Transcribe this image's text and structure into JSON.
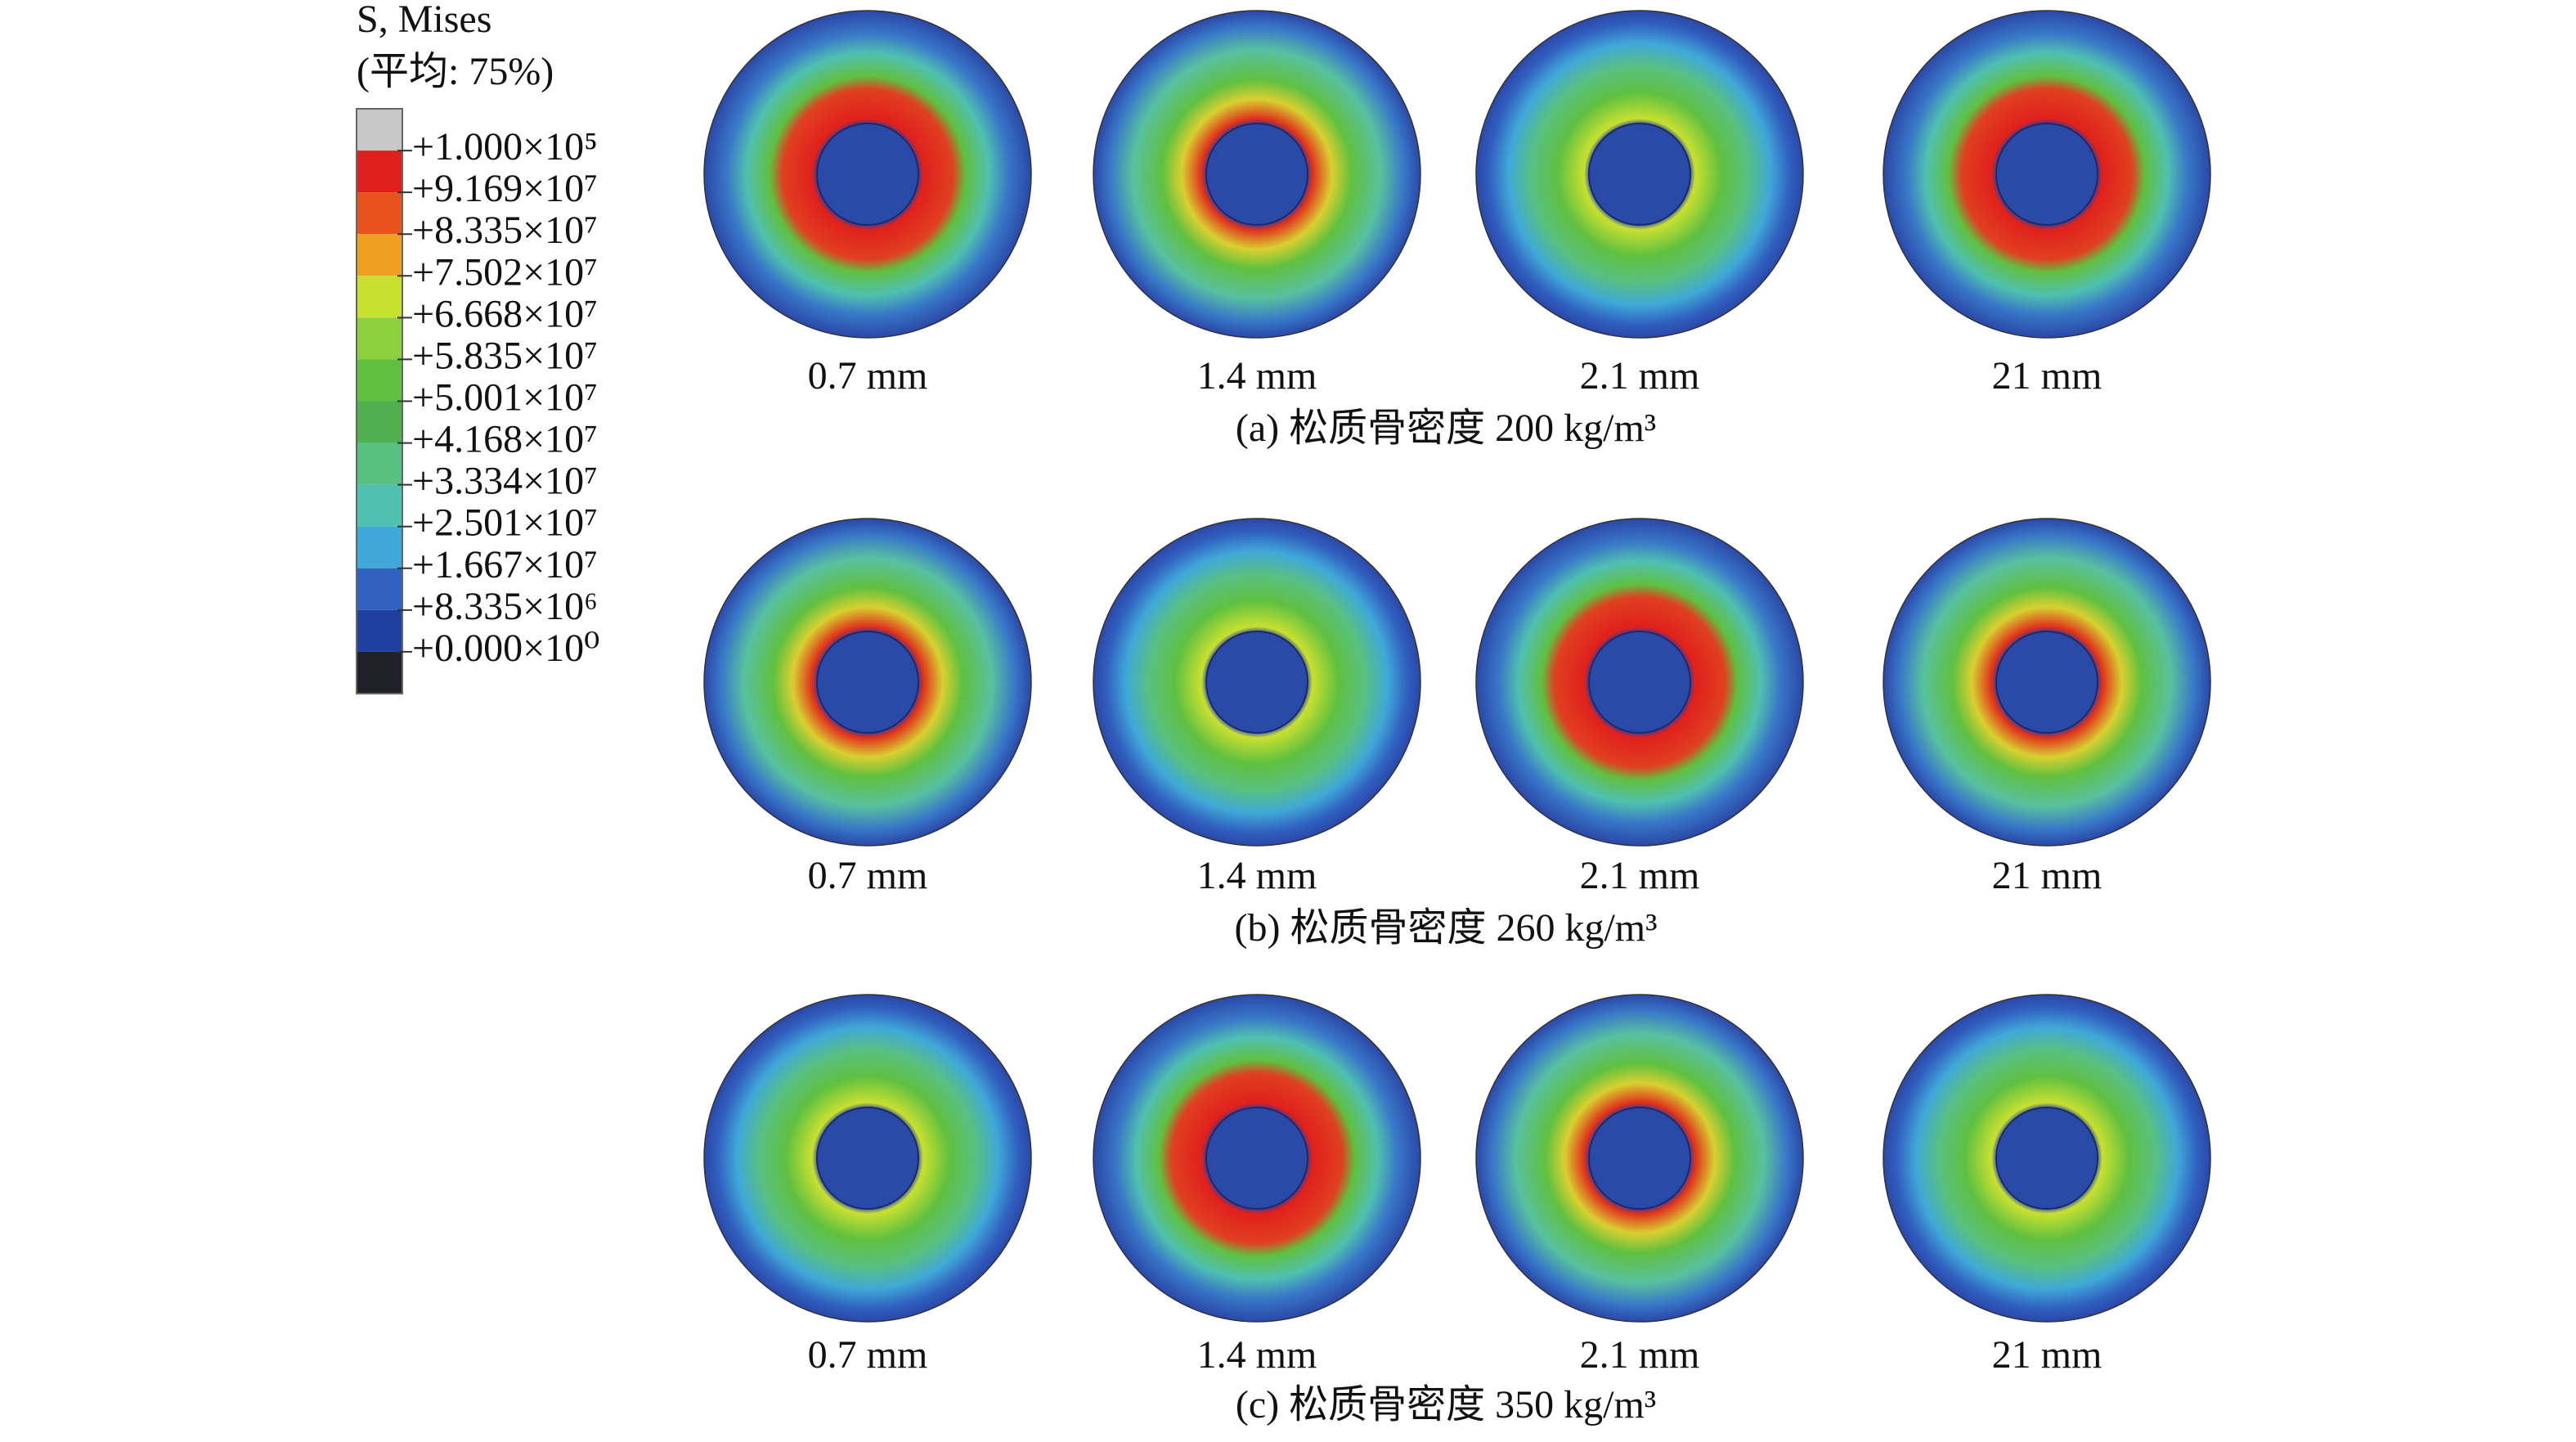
{
  "legend": {
    "title": "S, Mises",
    "subtitle": "(平均: 75%)",
    "labels": [
      "+1.000×10⁵",
      "+9.169×10⁷",
      "+8.335×10⁷",
      "+7.502×10⁷",
      "+6.668×10⁷",
      "+5.835×10⁷",
      "+5.001×10⁷",
      "+4.168×10⁷",
      "+3.334×10⁷",
      "+2.501×10⁷",
      "+1.667×10⁷",
      "+8.335×10⁶",
      "+0.000×10⁰"
    ],
    "colors": [
      "#c8c8c8",
      "#e0201c",
      "#e8521c",
      "#f0a020",
      "#c8e030",
      "#8cd040",
      "#60c040",
      "#50b050",
      "#58c080",
      "#50c0b0",
      "#40a8d8",
      "#3060c0",
      "#2040a0",
      "#202028"
    ]
  },
  "rows": [
    {
      "caption": "(a) 松质骨密度 200 kg/m³",
      "panels": [
        "0.7 mm",
        "1.4 mm",
        "2.1 mm",
        "21 mm"
      ]
    },
    {
      "caption": "(b) 松质骨密度 260 kg/m³",
      "panels": [
        "0.7 mm",
        "1.4 mm",
        "2.1 mm",
        "21 mm"
      ]
    },
    {
      "caption": "(c) 松质骨密度 350 kg/m³",
      "panels": [
        "0.7 mm",
        "1.4 mm",
        "2.1 mm",
        "21 mm"
      ]
    }
  ]
}
